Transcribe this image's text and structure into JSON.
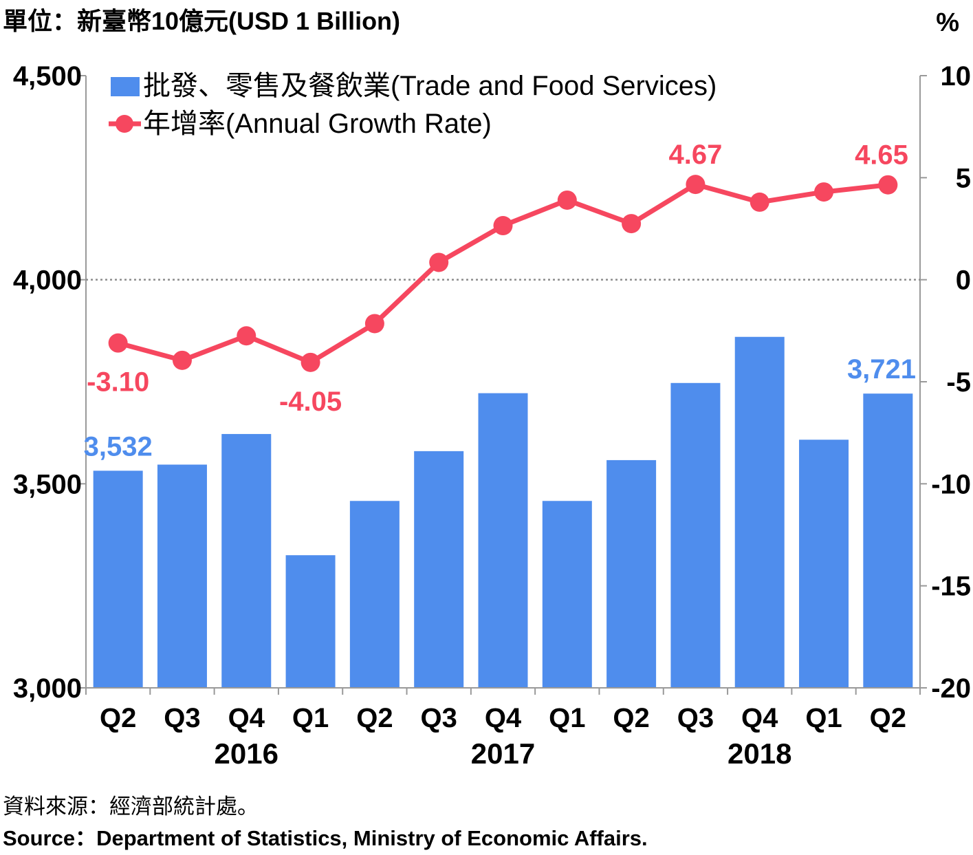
{
  "header": {
    "left_unit": "單位：新臺幣10億元(USD 1 Billion)",
    "right_unit": "%"
  },
  "source": {
    "zh": "資料來源：經濟部統計處。",
    "en": "Source：Department of Statistics, Ministry of Economic Affairs."
  },
  "colors": {
    "bar": "#4f8ded",
    "line": "#f6475f",
    "axis": "#999999",
    "zero_line": "#8c8c8c"
  },
  "chart_data": {
    "type": "bar",
    "categories": [
      "Q2",
      "Q3",
      "Q4",
      "Q1",
      "Q2",
      "Q3",
      "Q4",
      "Q1",
      "Q2",
      "Q3",
      "Q4",
      "Q1",
      "Q2"
    ],
    "year_groups": [
      {
        "label": "2016",
        "start": 0,
        "end": 4
      },
      {
        "label": "2017",
        "start": 4,
        "end": 8
      },
      {
        "label": "2018",
        "start": 8,
        "end": 12
      }
    ],
    "series": [
      {
        "name": "批發、零售及餐飲業(Trade and Food Services)",
        "type": "bar",
        "axis": "left",
        "values": [
          3532,
          3547,
          3622,
          3325,
          3458,
          3580,
          3722,
          3458,
          3558,
          3747,
          3860,
          3608,
          3721
        ]
      },
      {
        "name": "年增率(Annual Growth Rate)",
        "type": "line",
        "axis": "right",
        "values": [
          -3.1,
          -3.95,
          -2.75,
          -4.05,
          -2.15,
          0.85,
          2.65,
          3.9,
          2.75,
          4.67,
          3.8,
          4.3,
          4.65
        ]
      }
    ],
    "data_labels": [
      {
        "series": 0,
        "index": 0,
        "text": "3,532"
      },
      {
        "series": 0,
        "index": 12,
        "text": "3,721"
      },
      {
        "series": 1,
        "index": 0,
        "text": "-3.10"
      },
      {
        "series": 1,
        "index": 3,
        "text": "-4.05"
      },
      {
        "series": 1,
        "index": 9,
        "text": "4.67"
      },
      {
        "series": 1,
        "index": 12,
        "text": "4.65"
      }
    ],
    "left_axis": {
      "range": [
        3000,
        4500
      ],
      "ticks": [
        3000,
        3500,
        4000,
        4500
      ],
      "tick_labels": [
        "3,000",
        "3,500",
        "4,000",
        "4,500"
      ]
    },
    "right_axis": {
      "range": [
        -20,
        10
      ],
      "ticks": [
        -20,
        -15,
        -10,
        -5,
        0,
        5,
        10
      ],
      "tick_labels": [
        "-20",
        "-15",
        "-10",
        "-5",
        "0",
        "5",
        "10"
      ]
    },
    "reference_line": {
      "axis": "right",
      "value": 0,
      "style": "dotted"
    },
    "grid": false,
    "legend_position": "top-left"
  }
}
